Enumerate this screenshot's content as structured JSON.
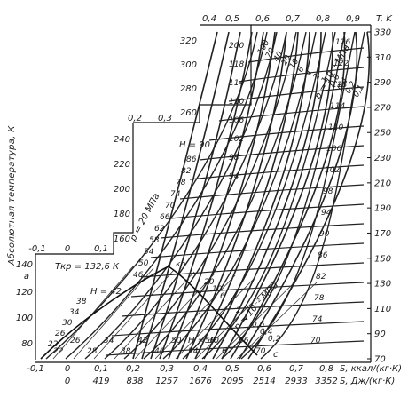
{
  "chart_data": {
    "type": "line",
    "title": "",
    "subtitle": "",
    "ylabel_left": "Абсолютная температура, К",
    "ylabel_right": "T, K",
    "xlabel_bottom_primary": "S, ккал/(кг·К)",
    "xlabel_bottom_secondary": "S, Дж/(кг·К)",
    "left_axis": {
      "bottom_block": {
        "ticks": [
          80,
          100,
          120,
          140
        ],
        "extra_labels": [
          "a"
        ]
      },
      "mid_block": {
        "ticks": [
          160,
          180,
          200,
          220,
          240
        ]
      },
      "upper_block": {
        "ticks": [
          260,
          280,
          300,
          320
        ]
      }
    },
    "right_axis": {
      "ticks": [
        70,
        90,
        110,
        130,
        150,
        170,
        190,
        210,
        230,
        250,
        270,
        290,
        310,
        330
      ]
    },
    "entropy_kcal_ticks_bottom": [
      "-0,1",
      "0",
      "0,1",
      "0,2",
      "0,3",
      "0,4",
      "0,5",
      "0,6",
      "0,7",
      "0,8"
    ],
    "entropy_J_ticks_bottom": [
      "0",
      "419",
      "838",
      "1257",
      "1676",
      "2095",
      "2514",
      "2933",
      "3352"
    ],
    "entropy_top_labels": [
      "-0,1",
      "0",
      "0,1",
      "0,2",
      "0,3",
      "0,4",
      "0,5",
      "0,6",
      "0,7",
      "0,8",
      "0,9"
    ],
    "entropy_top_values": [
      -0.1,
      0,
      0.1,
      0.2,
      0.3,
      0.4,
      0.5,
      0.6,
      0.7,
      0.8,
      0.9
    ],
    "critical_point_label": "Tкр = 132,6 К",
    "critical_marker_label": "кр",
    "label_c": "c",
    "label_a": "a",
    "pressure_labels": {
      "megapascal": "p = 20 МПа",
      "low": "p = 10⁻² МПа",
      "high_right": "p = 10⁻¹ МПа"
    },
    "enthalpy_labels": [
      "H = 90",
      "86",
      "82",
      "78",
      "74",
      "70",
      "66",
      "62",
      "58",
      "54",
      "50",
      "46",
      "H = 42",
      "38",
      "34",
      "30",
      "26",
      "22"
    ],
    "temperature_isotherm_labels": [
      "200",
      "118",
      "114",
      "110",
      "106",
      "102",
      "98",
      "94",
      "90",
      "86",
      "82",
      "78",
      "74",
      "70",
      "66",
      "62",
      "58",
      "54",
      "50",
      "46",
      "42",
      "38"
    ],
    "pressure_isobar_labels": [
      "100",
      "70",
      "40",
      "20",
      "10",
      "6",
      "4",
      "2",
      "1",
      "0,6",
      "0,4",
      "0,2",
      "0,1"
    ],
    "enthalpy_right_labels": [
      "126",
      "122",
      "118",
      "114",
      "110",
      "106",
      "102",
      "98",
      "94",
      "90",
      "86",
      "82",
      "78",
      "74",
      "70"
    ],
    "low_region_labels": [
      "20",
      "10",
      "6",
      "4",
      "2",
      "1",
      "0,6",
      "0,4",
      "0,2"
    ],
    "dome_labels": [
      "H = 30",
      "22",
      "26",
      "28",
      "34",
      "38",
      "42",
      "46",
      "50",
      "54",
      "58",
      "62",
      "66",
      "70"
    ],
    "grid": false
  }
}
